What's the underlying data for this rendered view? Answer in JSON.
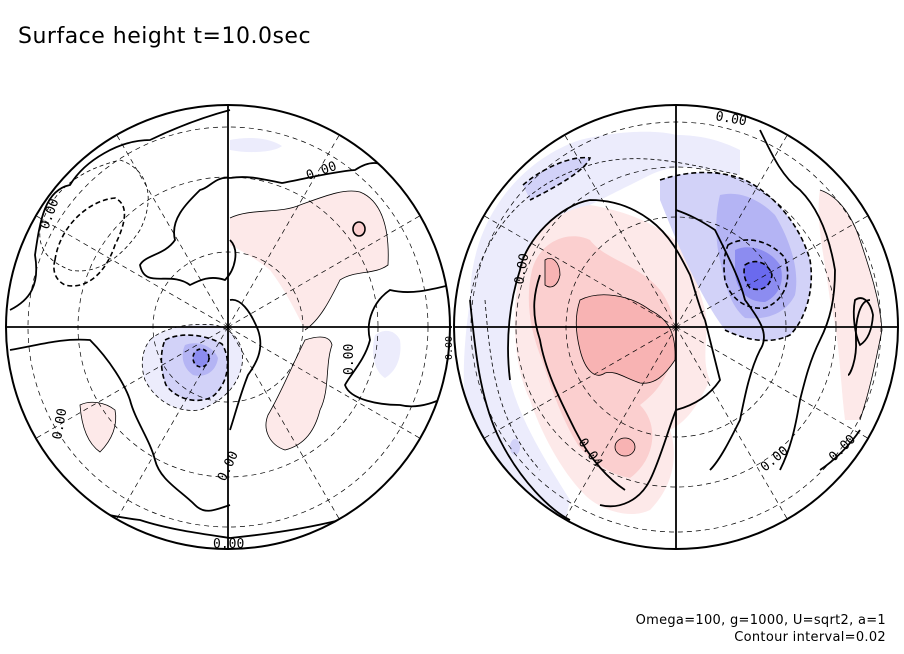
{
  "chart_data": {
    "type": "heatmap",
    "title": "Surface height t=10.0sec",
    "annotations": {
      "params": "Omega=100, g=1000, U=sqrt2, a=1",
      "contour_interval": "Contour interval=0.02"
    },
    "contour_interval": 0.02,
    "projection": "polar stereographic, two hemispheres",
    "colors": {
      "positive_1": "#fde9e9",
      "positive_2": "#fbcfcf",
      "positive_3": "#f8b3b3",
      "negative_1": "#ececfc",
      "negative_2": "#d2d2f8",
      "negative_3": "#b4b4f4",
      "negative_4": "#8c8cf0",
      "negative_5": "#6a6aee"
    },
    "panels": [
      {
        "name": "left-hemisphere",
        "contour_labels": [
          "0.00",
          "0.00",
          "0.00",
          "0.00",
          "0.00",
          "0.00",
          "0.00"
        ],
        "extrema": [
          {
            "sign": "negative",
            "approx_value": -0.06
          },
          {
            "sign": "positive",
            "approx_value": 0.02
          }
        ]
      },
      {
        "name": "right-hemisphere",
        "contour_labels": [
          "0.00",
          "0.00",
          "0.04",
          "0.00",
          "0.00"
        ],
        "extrema": [
          {
            "sign": "positive",
            "approx_value": 0.06
          },
          {
            "sign": "negative",
            "approx_value": -0.1
          }
        ]
      }
    ]
  }
}
